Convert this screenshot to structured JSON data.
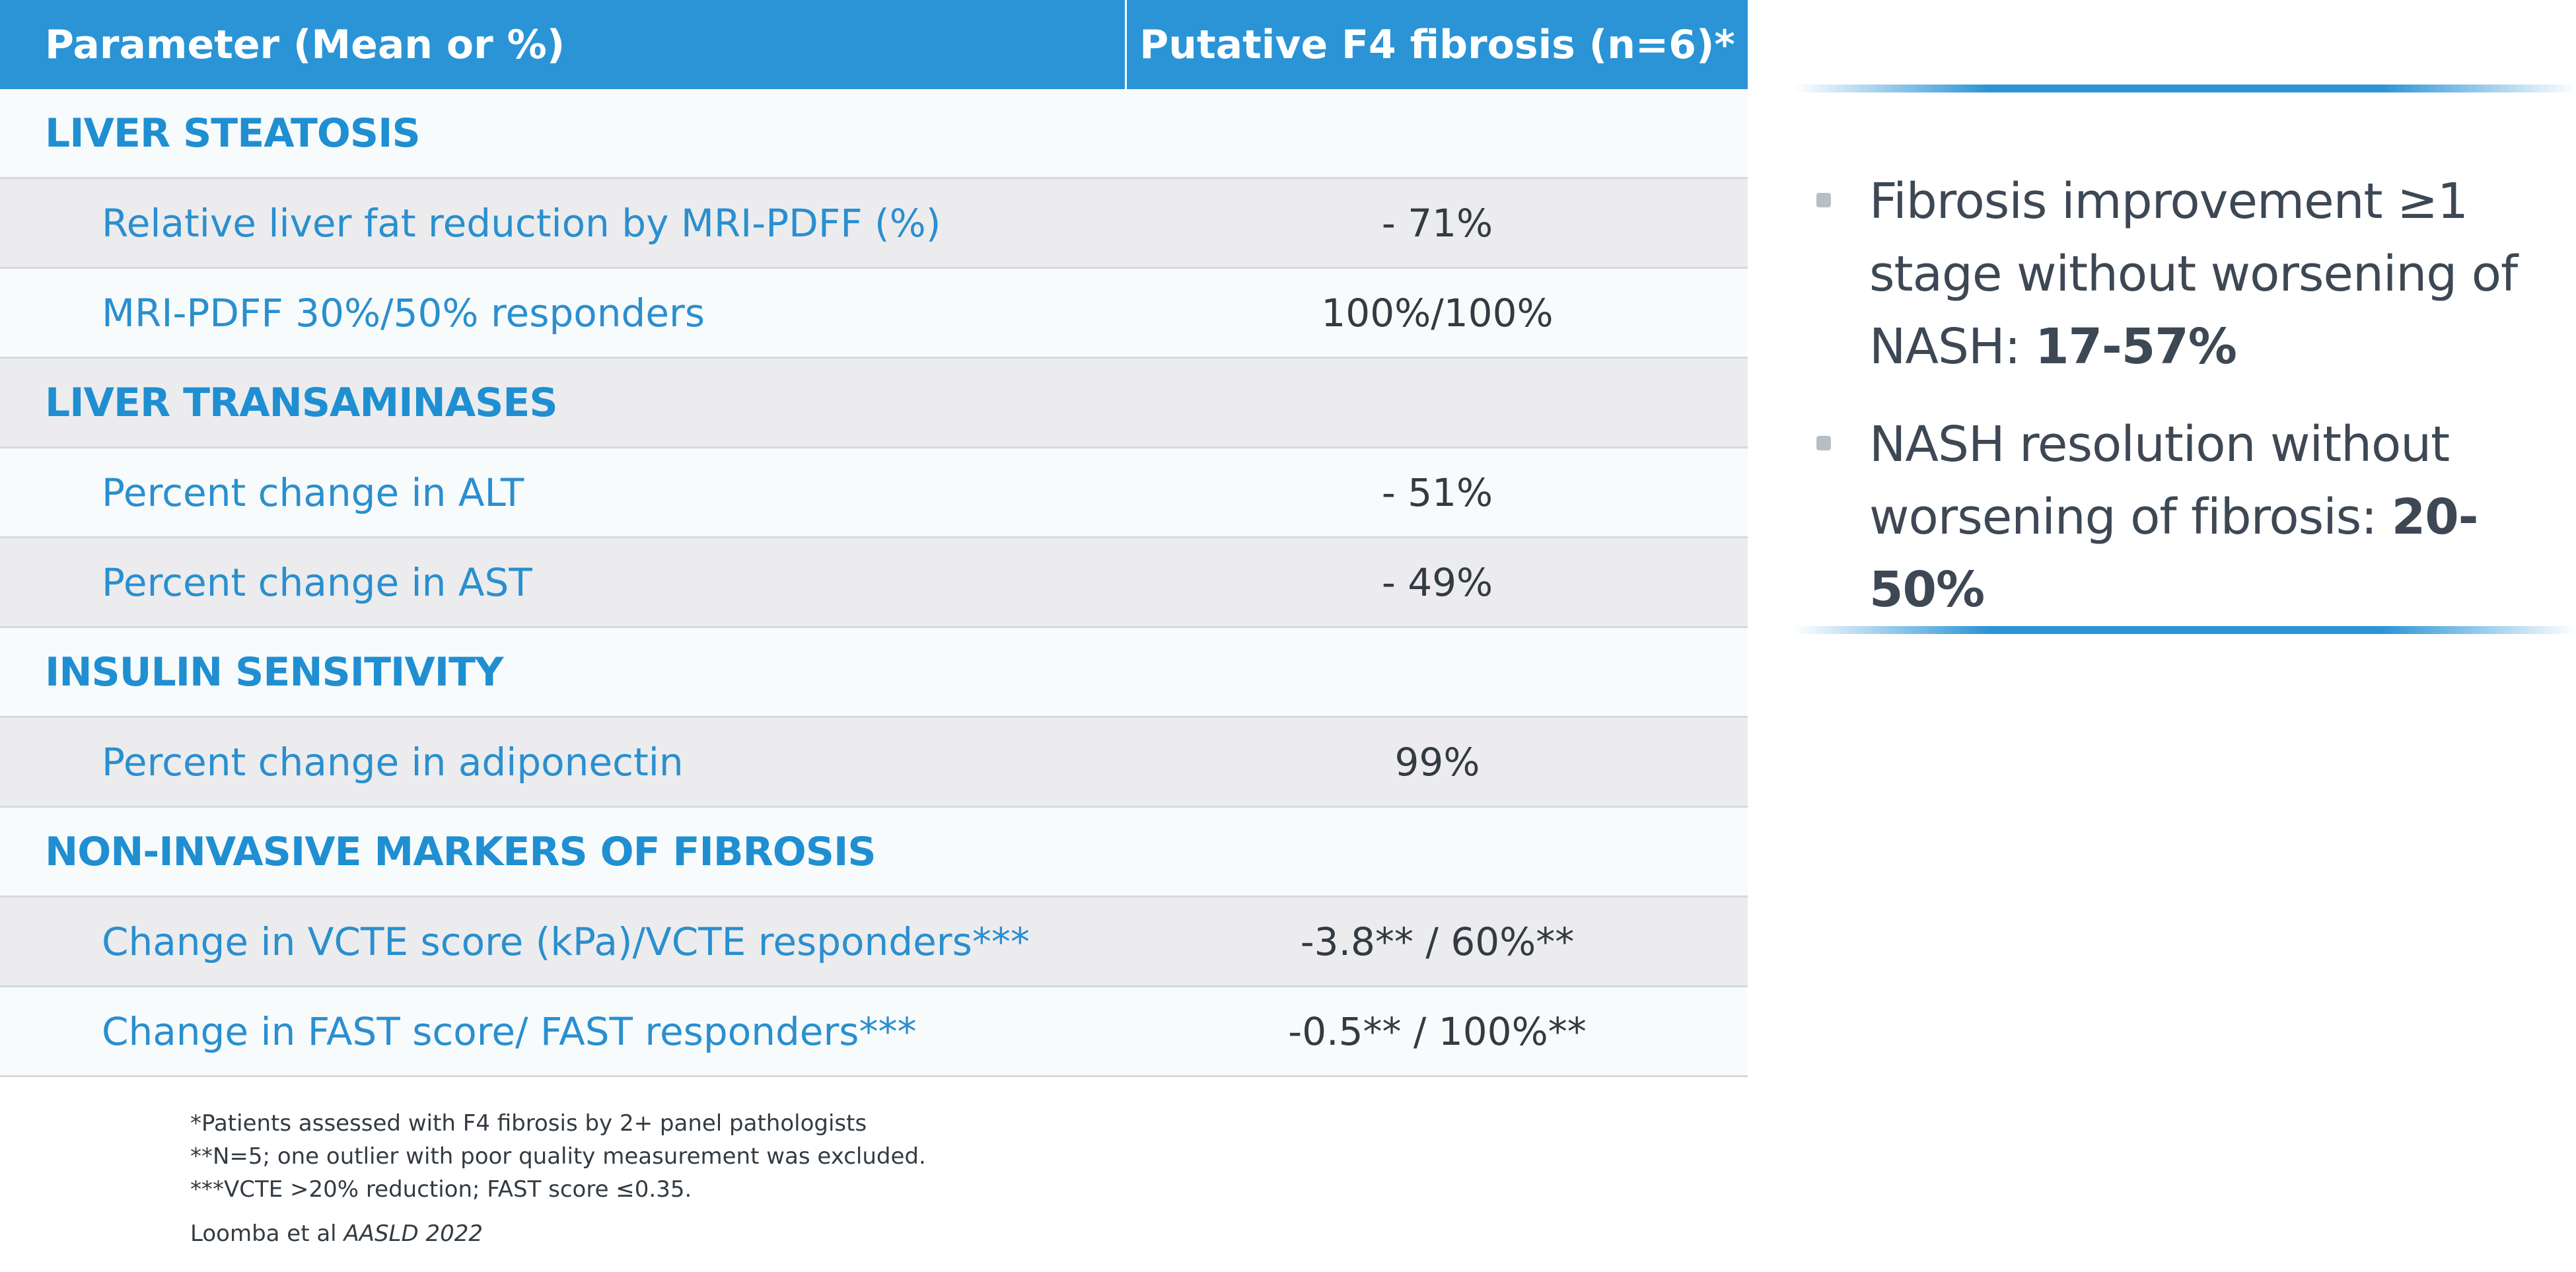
{
  "table": {
    "header": {
      "col1": "Parameter (Mean or %)",
      "col2": "Putative F4 fibrosis (n=6)*"
    },
    "rows": [
      {
        "kind": "section",
        "label": "LIVER STEATOSIS",
        "value": ""
      },
      {
        "kind": "data",
        "label": "Relative liver fat reduction by MRI-PDFF (%)",
        "value": "- 71%"
      },
      {
        "kind": "data",
        "label": "MRI-PDFF 30%/50% responders",
        "value": "100%/100%"
      },
      {
        "kind": "section",
        "label": "LIVER TRANSAMINASES",
        "value": ""
      },
      {
        "kind": "data",
        "label": "Percent change in ALT",
        "value": "- 51%"
      },
      {
        "kind": "data",
        "label": "Percent change in AST",
        "value": "- 49%"
      },
      {
        "kind": "section",
        "label": "INSULIN SENSITIVITY",
        "value": ""
      },
      {
        "kind": "data",
        "label": "Percent change in adiponectin",
        "value": "99%"
      },
      {
        "kind": "section",
        "label": "NON-INVASIVE MARKERS OF FIBROSIS",
        "value": ""
      },
      {
        "kind": "data",
        "label": "Change in VCTE score (kPa)/VCTE responders***",
        "value": "-3.8** / 60%**"
      },
      {
        "kind": "data",
        "label": "Change in FAST score/ FAST responders***",
        "value": "-0.5** / 100%**"
      }
    ]
  },
  "footnotes": [
    "*Patients assessed with F4 fibrosis by 2+ panel pathologists",
    "**N=5; one outlier with poor quality measurement was excluded.",
    "***VCTE >20% reduction; FAST score ≤0.35."
  ],
  "citation": {
    "authors": "Loomba et al ",
    "venue": "AASLD 2022"
  },
  "findings": [
    {
      "text": "Fibrosis improvement ≥1 stage without worsening of NASH: ",
      "highlight": "17-57%"
    },
    {
      "text": "NASH resolution without worsening of fibrosis: ",
      "highlight": "20-50%"
    }
  ],
  "colors": {
    "header_blue": "#2a94d6",
    "section_blue": "#1f8fd2",
    "row_shade": "#ececee",
    "row_plain": "#f8fbfc",
    "text_dark": "#333b42"
  }
}
